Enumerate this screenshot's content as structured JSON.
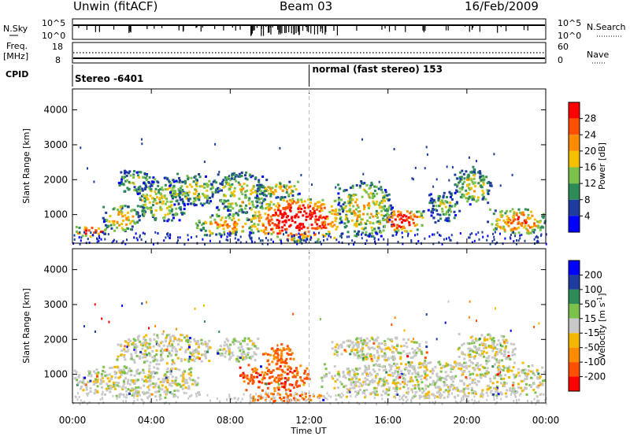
{
  "header": {
    "title": "Unwin (fitACF)",
    "beam": "Beam 03",
    "date": "16/Feb/2009"
  },
  "status_panels": {
    "nsky_label": "N.Sky",
    "nsky_ticks": [
      "10^5",
      "10^0"
    ],
    "nsearch_label": "N.Search",
    "nsearch_ticks": [
      "10^5",
      "10^0"
    ],
    "freq_label_top": "Freq.",
    "freq_label_unit": "[MHz]",
    "freq_ticks": [
      "18",
      "8"
    ],
    "nave_label": "Nave",
    "nave_ticks": [
      "60",
      "0"
    ],
    "cpid_label": "CPID",
    "cpid_left": "Stereo -6401",
    "cpid_right": "normal (fast stereo) 153",
    "cpid_change_hour": 12
  },
  "chart_data": [
    {
      "type": "heatmap",
      "name": "Power",
      "ylabel": "Slant Range [km]",
      "xlabel": "Time UT",
      "x_ticks": [
        "00:00",
        "04:00",
        "08:00",
        "12:00",
        "16:00",
        "20:00",
        "00:00"
      ],
      "x_range_hours": [
        0,
        24
      ],
      "y_ticks": [
        1000,
        2000,
        3000,
        4000
      ],
      "y_range_km": [
        180,
        4600
      ],
      "colorbar_label": "Power [dB]",
      "colorbar_ticks": [
        "28",
        "24",
        "20",
        "16",
        "12",
        "8",
        "4"
      ],
      "colors": [
        "#0000ff",
        "#1e3c9e",
        "#2e8b57",
        "#7cc24a",
        "#f5c000",
        "#ff8c00",
        "#ff5000",
        "#ff0000"
      ],
      "bands": [
        {
          "x": [
            0.0,
            1.8
          ],
          "low": 400,
          "high": 700,
          "peak": 0.75
        },
        {
          "x": [
            1.5,
            3.4
          ],
          "low": 520,
          "high": 1300,
          "peak": 0.55
        },
        {
          "x": [
            2.3,
            4.0
          ],
          "low": 1600,
          "high": 2300,
          "peak": 0.35
        },
        {
          "x": [
            3.2,
            5.7
          ],
          "low": 800,
          "high": 2100,
          "peak": 0.45
        },
        {
          "x": [
            4.8,
            7.4
          ],
          "low": 1300,
          "high": 2200,
          "peak": 0.4
        },
        {
          "x": [
            6.2,
            9.2
          ],
          "low": 420,
          "high": 1050,
          "peak": 0.6
        },
        {
          "x": [
            7.2,
            9.8
          ],
          "low": 1050,
          "high": 2250,
          "peak": 0.45
        },
        {
          "x": [
            9.0,
            13.6
          ],
          "low": 260,
          "high": 1500,
          "peak": 0.92
        },
        {
          "x": [
            9.3,
            11.6
          ],
          "low": 1500,
          "high": 2000,
          "peak": 0.5
        },
        {
          "x": [
            13.4,
            16.2
          ],
          "low": 400,
          "high": 2000,
          "peak": 0.5
        },
        {
          "x": [
            15.6,
            17.8
          ],
          "low": 500,
          "high": 1200,
          "peak": 0.8
        },
        {
          "x": [
            18.0,
            19.6
          ],
          "low": 800,
          "high": 1700,
          "peak": 0.35
        },
        {
          "x": [
            19.3,
            21.2
          ],
          "low": 1300,
          "high": 2400,
          "peak": 0.45
        },
        {
          "x": [
            21.0,
            24.0
          ],
          "low": 450,
          "high": 1200,
          "peak": 0.65
        }
      ]
    },
    {
      "type": "heatmap",
      "name": "Velocity",
      "ylabel": "Slant Range [km]",
      "xlabel": "Time UT",
      "x_ticks": [
        "00:00",
        "04:00",
        "08:00",
        "12:00",
        "16:00",
        "20:00",
        "00:00"
      ],
      "x_range_hours": [
        0,
        24
      ],
      "y_ticks": [
        1000,
        2000,
        3000,
        4000
      ],
      "y_range_km": [
        180,
        4600
      ],
      "colorbar_label": "Velocity [m s^-1]",
      "colorbar_ticks": [
        "200",
        "100",
        "50",
        "15",
        "-15",
        "-50",
        "-100",
        "-200"
      ],
      "colors": [
        "#ff0000",
        "#ff5000",
        "#ff8c00",
        "#f5b800",
        "#c8c8c8",
        "#7cc24a",
        "#2e8b57",
        "#1e3c9e",
        "#0000ff"
      ],
      "bands": [
        {
          "x": [
            0.0,
            6.4
          ],
          "low": 350,
          "high": 1300,
          "peak": 0.0
        },
        {
          "x": [
            2.2,
            7.0
          ],
          "low": 1300,
          "high": 2200,
          "peak": 0.0
        },
        {
          "x": [
            7.2,
            9.4
          ],
          "low": 1400,
          "high": 2100,
          "peak": 0.05
        },
        {
          "x": [
            8.4,
            12.0
          ],
          "low": 550,
          "high": 1300,
          "peak": -0.65
        },
        {
          "x": [
            9.6,
            11.2
          ],
          "low": 1300,
          "high": 1900,
          "peak": -0.6
        },
        {
          "x": [
            9.0,
            12.8
          ],
          "low": 250,
          "high": 500,
          "peak": -0.55
        },
        {
          "x": [
            12.5,
            24.0
          ],
          "low": 350,
          "high": 1400,
          "peak": 0.0
        },
        {
          "x": [
            13.0,
            18.0
          ],
          "low": 1400,
          "high": 2100,
          "peak": 0.0
        },
        {
          "x": [
            19.5,
            22.5
          ],
          "low": 1300,
          "high": 2200,
          "peak": 0.0
        }
      ]
    }
  ]
}
